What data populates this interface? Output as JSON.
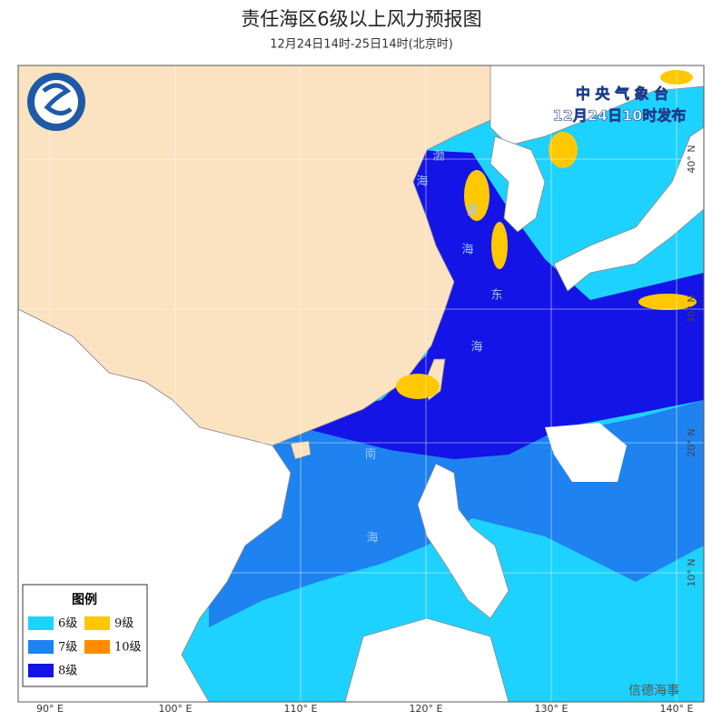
{
  "header": {
    "title": "责任海区6级以上风力预报图",
    "subtitle": "12月24日14时-25日14时(北京时)"
  },
  "issuer": {
    "name": "中 央 气 象 台",
    "time": "12月24日10时发布"
  },
  "legend": {
    "title": "图例",
    "items": [
      {
        "label": "6级",
        "color": "#1ed2ff"
      },
      {
        "label": "9级",
        "color": "#ffc800"
      },
      {
        "label": "7级",
        "color": "#1e82f0"
      },
      {
        "label": "10级",
        "color": "#ff8c00"
      },
      {
        "label": "8级",
        "color": "#1414e6"
      }
    ]
  },
  "sea_labels": [
    "渤",
    "海",
    "黄",
    "海",
    "东",
    "海",
    "南",
    "海"
  ],
  "lon_labels": [
    "90° E",
    "100° E",
    "110° E",
    "120° E",
    "130° E",
    "140° E"
  ],
  "lat_labels": [
    "40° N",
    "30° N",
    "20° N",
    "10° N"
  ],
  "watermark": "信德海事"
}
